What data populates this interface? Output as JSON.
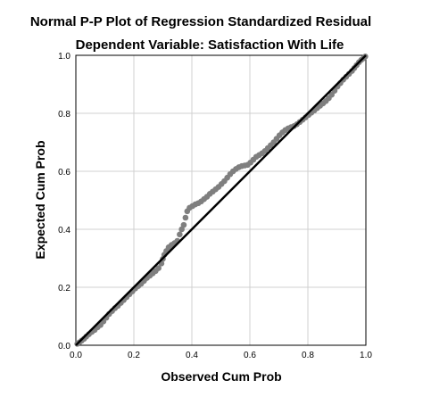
{
  "chart_data": {
    "type": "scatter",
    "title": "Normal P-P Plot of Regression Standardized Residual",
    "subtitle": "Dependent Variable: Satisfaction With Life",
    "xlabel": "Observed Cum Prob",
    "ylabel": "Expected Cum Prob",
    "xlim": [
      0.0,
      1.0
    ],
    "ylim": [
      0.0,
      1.0
    ],
    "xticks": [
      "0.0",
      "0.2",
      "0.4",
      "0.6",
      "0.8",
      "1.0"
    ],
    "yticks": [
      "0.0",
      "0.2",
      "0.4",
      "0.6",
      "0.8",
      "1.0"
    ],
    "grid": true,
    "reference_line": {
      "from": [
        0.0,
        0.0
      ],
      "to": [
        1.0,
        1.0
      ],
      "color": "#000000"
    },
    "point_color": "#7f7f7f",
    "points": [
      [
        0.005,
        0.005
      ],
      [
        0.012,
        0.01
      ],
      [
        0.02,
        0.016
      ],
      [
        0.028,
        0.022
      ],
      [
        0.036,
        0.03
      ],
      [
        0.045,
        0.038
      ],
      [
        0.055,
        0.046
      ],
      [
        0.065,
        0.053
      ],
      [
        0.075,
        0.062
      ],
      [
        0.085,
        0.07
      ],
      [
        0.095,
        0.082
      ],
      [
        0.105,
        0.095
      ],
      [
        0.115,
        0.108
      ],
      [
        0.125,
        0.118
      ],
      [
        0.135,
        0.128
      ],
      [
        0.145,
        0.136
      ],
      [
        0.155,
        0.146
      ],
      [
        0.165,
        0.156
      ],
      [
        0.175,
        0.166
      ],
      [
        0.185,
        0.176
      ],
      [
        0.195,
        0.186
      ],
      [
        0.205,
        0.196
      ],
      [
        0.215,
        0.204
      ],
      [
        0.225,
        0.212
      ],
      [
        0.235,
        0.222
      ],
      [
        0.245,
        0.232
      ],
      [
        0.255,
        0.24
      ],
      [
        0.265,
        0.248
      ],
      [
        0.275,
        0.256
      ],
      [
        0.285,
        0.266
      ],
      [
        0.295,
        0.282
      ],
      [
        0.3,
        0.298
      ],
      [
        0.305,
        0.312
      ],
      [
        0.312,
        0.325
      ],
      [
        0.32,
        0.338
      ],
      [
        0.33,
        0.346
      ],
      [
        0.34,
        0.352
      ],
      [
        0.35,
        0.36
      ],
      [
        0.358,
        0.382
      ],
      [
        0.365,
        0.4
      ],
      [
        0.372,
        0.415
      ],
      [
        0.378,
        0.44
      ],
      [
        0.384,
        0.462
      ],
      [
        0.392,
        0.474
      ],
      [
        0.402,
        0.48
      ],
      [
        0.412,
        0.486
      ],
      [
        0.422,
        0.49
      ],
      [
        0.432,
        0.496
      ],
      [
        0.442,
        0.504
      ],
      [
        0.452,
        0.512
      ],
      [
        0.462,
        0.522
      ],
      [
        0.472,
        0.53
      ],
      [
        0.482,
        0.538
      ],
      [
        0.492,
        0.546
      ],
      [
        0.502,
        0.556
      ],
      [
        0.512,
        0.566
      ],
      [
        0.522,
        0.578
      ],
      [
        0.532,
        0.59
      ],
      [
        0.542,
        0.6
      ],
      [
        0.552,
        0.608
      ],
      [
        0.562,
        0.614
      ],
      [
        0.572,
        0.618
      ],
      [
        0.582,
        0.62
      ],
      [
        0.592,
        0.622
      ],
      [
        0.602,
        0.63
      ],
      [
        0.612,
        0.64
      ],
      [
        0.622,
        0.65
      ],
      [
        0.632,
        0.656
      ],
      [
        0.642,
        0.662
      ],
      [
        0.652,
        0.67
      ],
      [
        0.662,
        0.68
      ],
      [
        0.672,
        0.69
      ],
      [
        0.682,
        0.7
      ],
      [
        0.692,
        0.712
      ],
      [
        0.702,
        0.724
      ],
      [
        0.712,
        0.734
      ],
      [
        0.722,
        0.742
      ],
      [
        0.732,
        0.748
      ],
      [
        0.742,
        0.752
      ],
      [
        0.752,
        0.756
      ],
      [
        0.762,
        0.762
      ],
      [
        0.772,
        0.77
      ],
      [
        0.782,
        0.778
      ],
      [
        0.792,
        0.786
      ],
      [
        0.802,
        0.794
      ],
      [
        0.812,
        0.802
      ],
      [
        0.822,
        0.81
      ],
      [
        0.832,
        0.818
      ],
      [
        0.842,
        0.826
      ],
      [
        0.852,
        0.834
      ],
      [
        0.862,
        0.842
      ],
      [
        0.872,
        0.852
      ],
      [
        0.882,
        0.864
      ],
      [
        0.892,
        0.878
      ],
      [
        0.902,
        0.892
      ],
      [
        0.912,
        0.904
      ],
      [
        0.922,
        0.916
      ],
      [
        0.932,
        0.926
      ],
      [
        0.942,
        0.936
      ],
      [
        0.952,
        0.946
      ],
      [
        0.96,
        0.956
      ],
      [
        0.968,
        0.966
      ],
      [
        0.976,
        0.976
      ],
      [
        0.984,
        0.984
      ],
      [
        0.992,
        0.99
      ],
      [
        0.998,
        0.996
      ]
    ]
  }
}
